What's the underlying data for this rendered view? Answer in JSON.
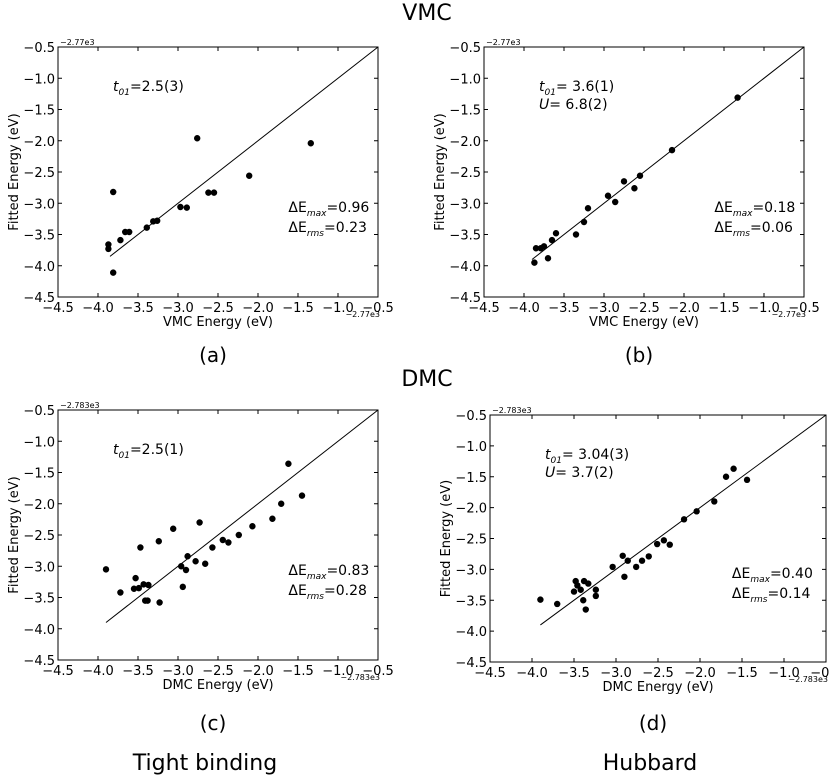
{
  "header": {
    "top_title": "VMC",
    "mid_title": "DMC"
  },
  "footer": {
    "left_title": "Tight binding",
    "right_title": "Hubbard"
  },
  "chart_data": [
    {
      "id": "a",
      "type": "scatter",
      "panel_label": "(a)",
      "xlabel": "VMC Energy (eV)",
      "ylabel": "Fitted Energy (eV)",
      "x_offset_label": "−2.77e3",
      "y_offset_label": "−2.77e3",
      "xlim": [
        -4.5,
        -0.5
      ],
      "ylim": [
        -4.5,
        -0.5
      ],
      "ticks": [
        -4.5,
        -4.0,
        -3.5,
        -3.0,
        -2.5,
        -2.0,
        -1.5,
        -1.0,
        -0.5
      ],
      "diagonal_line": {
        "x": [
          -3.85,
          -0.5
        ],
        "y": [
          -3.85,
          -0.5
        ]
      },
      "params": [
        {
          "symbol": "t",
          "sub": "01",
          "value": "=2.5(3)"
        }
      ],
      "errors": {
        "max_label": "ΔE",
        "max_sub": "max",
        "max_value": "=0.96",
        "rms_label": "ΔE",
        "rms_sub": "rms",
        "rms_value": "=0.23"
      },
      "points": [
        {
          "x": -3.87,
          "y": -3.66
        },
        {
          "x": -3.87,
          "y": -3.73
        },
        {
          "x": -3.81,
          "y": -2.82
        },
        {
          "x": -3.81,
          "y": -4.11
        },
        {
          "x": -3.72,
          "y": -3.59
        },
        {
          "x": -3.66,
          "y": -3.46
        },
        {
          "x": -3.61,
          "y": -3.46
        },
        {
          "x": -3.39,
          "y": -3.39
        },
        {
          "x": -3.31,
          "y": -3.29
        },
        {
          "x": -3.26,
          "y": -3.28
        },
        {
          "x": -2.97,
          "y": -3.06
        },
        {
          "x": -2.89,
          "y": -3.07
        },
        {
          "x": -2.76,
          "y": -1.96
        },
        {
          "x": -2.62,
          "y": -2.83
        },
        {
          "x": -2.55,
          "y": -2.83
        },
        {
          "x": -2.11,
          "y": -2.56
        },
        {
          "x": -1.34,
          "y": -2.04
        }
      ]
    },
    {
      "id": "b",
      "type": "scatter",
      "panel_label": "(b)",
      "xlabel": "VMC Energy (eV)",
      "ylabel": "Fitted Energy (eV)",
      "x_offset_label": "−2.77e3",
      "y_offset_label": "−2.77e3",
      "xlim": [
        -4.5,
        -0.5
      ],
      "ylim": [
        -4.5,
        -0.5
      ],
      "ticks": [
        -4.5,
        -4.0,
        -3.5,
        -3.0,
        -2.5,
        -2.0,
        -1.5,
        -1.0,
        -0.5
      ],
      "diagonal_line": {
        "x": [
          -3.9,
          -0.5
        ],
        "y": [
          -3.9,
          -0.5
        ]
      },
      "params": [
        {
          "symbol": "t",
          "sub": "01",
          "value": "= 3.6(1)"
        },
        {
          "symbol": "U",
          "sub": "",
          "value": "= 6.8(2)"
        }
      ],
      "errors": {
        "max_label": "ΔE",
        "max_sub": "max",
        "max_value": "=0.18",
        "rms_label": "ΔE",
        "rms_sub": "rms",
        "rms_value": "=0.06"
      },
      "points": [
        {
          "x": -3.87,
          "y": -3.95
        },
        {
          "x": -3.85,
          "y": -3.72
        },
        {
          "x": -3.79,
          "y": -3.72
        },
        {
          "x": -3.75,
          "y": -3.69
        },
        {
          "x": -3.7,
          "y": -3.88
        },
        {
          "x": -3.65,
          "y": -3.59
        },
        {
          "x": -3.6,
          "y": -3.48
        },
        {
          "x": -3.35,
          "y": -3.5
        },
        {
          "x": -3.25,
          "y": -3.3
        },
        {
          "x": -3.2,
          "y": -3.08
        },
        {
          "x": -2.95,
          "y": -2.88
        },
        {
          "x": -2.86,
          "y": -2.98
        },
        {
          "x": -2.75,
          "y": -2.65
        },
        {
          "x": -2.62,
          "y": -2.76
        },
        {
          "x": -2.55,
          "y": -2.56
        },
        {
          "x": -2.15,
          "y": -2.15
        },
        {
          "x": -1.33,
          "y": -1.31
        }
      ]
    },
    {
      "id": "c",
      "type": "scatter",
      "panel_label": "(c)",
      "xlabel": "DMC Energy (eV)",
      "ylabel": "Fitted Energy (eV)",
      "x_offset_label": "−2.783e3",
      "y_offset_label": "−2.783e3",
      "xlim": [
        -4.5,
        -0.5
      ],
      "ylim": [
        -4.5,
        -0.5
      ],
      "ticks": [
        -4.5,
        -4.0,
        -3.5,
        -3.0,
        -2.5,
        -2.0,
        -1.5,
        -1.0,
        -0.5
      ],
      "diagonal_line": {
        "x": [
          -3.9,
          -0.5
        ],
        "y": [
          -3.9,
          -0.5
        ]
      },
      "params": [
        {
          "symbol": "t",
          "sub": "01",
          "value": "=2.5(1)"
        }
      ],
      "errors": {
        "max_label": "ΔE",
        "max_sub": "max",
        "max_value": "=0.83",
        "rms_label": "ΔE",
        "rms_sub": "rms",
        "rms_value": "=0.28"
      },
      "points": [
        {
          "x": -3.9,
          "y": -3.05
        },
        {
          "x": -3.72,
          "y": -3.42
        },
        {
          "x": -3.55,
          "y": -3.36
        },
        {
          "x": -3.53,
          "y": -3.19
        },
        {
          "x": -3.49,
          "y": -3.35
        },
        {
          "x": -3.47,
          "y": -2.7
        },
        {
          "x": -3.43,
          "y": -3.29
        },
        {
          "x": -3.41,
          "y": -3.55
        },
        {
          "x": -3.38,
          "y": -3.55
        },
        {
          "x": -3.37,
          "y": -3.3
        },
        {
          "x": -3.24,
          "y": -2.6
        },
        {
          "x": -3.23,
          "y": -3.58
        },
        {
          "x": -3.06,
          "y": -2.4
        },
        {
          "x": -2.96,
          "y": -3.0
        },
        {
          "x": -2.94,
          "y": -3.33
        },
        {
          "x": -2.9,
          "y": -3.06
        },
        {
          "x": -2.88,
          "y": -2.84
        },
        {
          "x": -2.78,
          "y": -2.92
        },
        {
          "x": -2.73,
          "y": -2.3
        },
        {
          "x": -2.66,
          "y": -2.96
        },
        {
          "x": -2.57,
          "y": -2.7
        },
        {
          "x": -2.44,
          "y": -2.58
        },
        {
          "x": -2.37,
          "y": -2.62
        },
        {
          "x": -2.24,
          "y": -2.5
        },
        {
          "x": -2.07,
          "y": -2.36
        },
        {
          "x": -1.82,
          "y": -2.24
        },
        {
          "x": -1.71,
          "y": -2.0
        },
        {
          "x": -1.62,
          "y": -1.36
        },
        {
          "x": -1.45,
          "y": -1.87
        }
      ]
    },
    {
      "id": "d",
      "type": "scatter",
      "panel_label": "(d)",
      "xlabel": "DMC Energy (eV)",
      "ylabel": "Fitted Energy (eV)",
      "x_offset_label": "−2.783e3",
      "y_offset_label": "−2.783e3",
      "xlim": [
        -4.5,
        -0.5
      ],
      "ylim": [
        -4.5,
        -0.5
      ],
      "ticks": [
        -4.5,
        -4.0,
        -3.5,
        -3.0,
        -2.5,
        -2.0,
        -1.5,
        -1.0,
        -0.5
      ],
      "diagonal_line": {
        "x": [
          -3.9,
          -0.5
        ],
        "y": [
          -3.9,
          -0.5
        ]
      },
      "params": [
        {
          "symbol": "t",
          "sub": "01",
          "value": "= 3.04(3)"
        },
        {
          "symbol": "U",
          "sub": "",
          "value": "= 3.7(2)"
        }
      ],
      "errors": {
        "max_label": "ΔE",
        "max_sub": "max",
        "max_value": "=0.40",
        "rms_label": "ΔE",
        "rms_sub": "rms",
        "rms_value": "=0.14"
      },
      "points": [
        {
          "x": -3.9,
          "y": -3.49
        },
        {
          "x": -3.7,
          "y": -3.56
        },
        {
          "x": -3.5,
          "y": -3.36
        },
        {
          "x": -3.48,
          "y": -3.19
        },
        {
          "x": -3.46,
          "y": -3.26
        },
        {
          "x": -3.42,
          "y": -3.33
        },
        {
          "x": -3.39,
          "y": -3.5
        },
        {
          "x": -3.38,
          "y": -3.19
        },
        {
          "x": -3.36,
          "y": -3.65
        },
        {
          "x": -3.33,
          "y": -3.23
        },
        {
          "x": -3.24,
          "y": -3.33
        },
        {
          "x": -3.24,
          "y": -3.43
        },
        {
          "x": -3.04,
          "y": -2.96
        },
        {
          "x": -2.92,
          "y": -2.78
        },
        {
          "x": -2.9,
          "y": -3.12
        },
        {
          "x": -2.86,
          "y": -2.86
        },
        {
          "x": -2.76,
          "y": -2.96
        },
        {
          "x": -2.69,
          "y": -2.86
        },
        {
          "x": -2.61,
          "y": -2.79
        },
        {
          "x": -2.51,
          "y": -2.59
        },
        {
          "x": -2.43,
          "y": -2.53
        },
        {
          "x": -2.36,
          "y": -2.6
        },
        {
          "x": -2.19,
          "y": -2.19
        },
        {
          "x": -2.04,
          "y": -2.06
        },
        {
          "x": -1.83,
          "y": -1.9
        },
        {
          "x": -1.69,
          "y": -1.5
        },
        {
          "x": -1.6,
          "y": -1.37
        },
        {
          "x": -1.44,
          "y": -1.55
        }
      ]
    }
  ]
}
